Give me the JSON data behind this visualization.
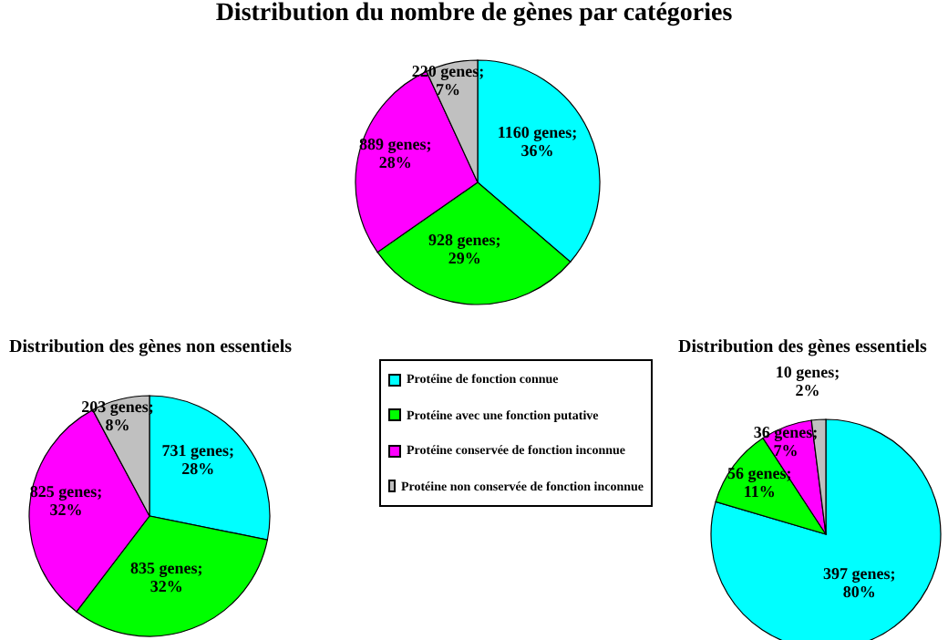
{
  "chart_data": [
    {
      "type": "pie",
      "title": "Distribution du nombre de gènes par catégories",
      "categories": [
        "Protéine de fonction connue",
        "Protéine avec une fonction putative",
        "Protéine conservée de fonction inconnue",
        "Protéine non conservée de fonction inconnue"
      ],
      "values": [
        1160,
        928,
        889,
        220
      ],
      "value_labels": [
        "1160 genes; 36%",
        "928 genes; 29%",
        "889 genes; 28%",
        "220 genes; 7%"
      ],
      "colors": [
        "#00ffff",
        "#00ff00",
        "#ff00ff",
        "#c0c0c0"
      ],
      "legend": "bottom"
    },
    {
      "type": "pie",
      "title": "Distribution des gènes non essentiels",
      "categories": [
        null,
        null,
        null,
        null
      ],
      "values": [
        731,
        835,
        825,
        203
      ],
      "value_labels": [
        "731 genes; 28%",
        "835 genes; 32%",
        "825 genes; 32%",
        "203 genes; 8%"
      ],
      "colors": [
        "#00ffff",
        "#00ff00",
        "#ff00ff",
        "#c0c0c0"
      ]
    },
    {
      "type": "pie",
      "title": "Distribution des gènes essentiels",
      "categories": [
        null,
        null,
        null,
        null
      ],
      "values": [
        397,
        56,
        36,
        10
      ],
      "value_labels": [
        "397 genes; 80%",
        "56 genes; 11%",
        "36 genes; 7%",
        "10 genes; 2%"
      ],
      "colors": [
        "#00ffff",
        "#00ff00",
        "#ff00ff",
        "#c0c0c0"
      ]
    }
  ]
}
